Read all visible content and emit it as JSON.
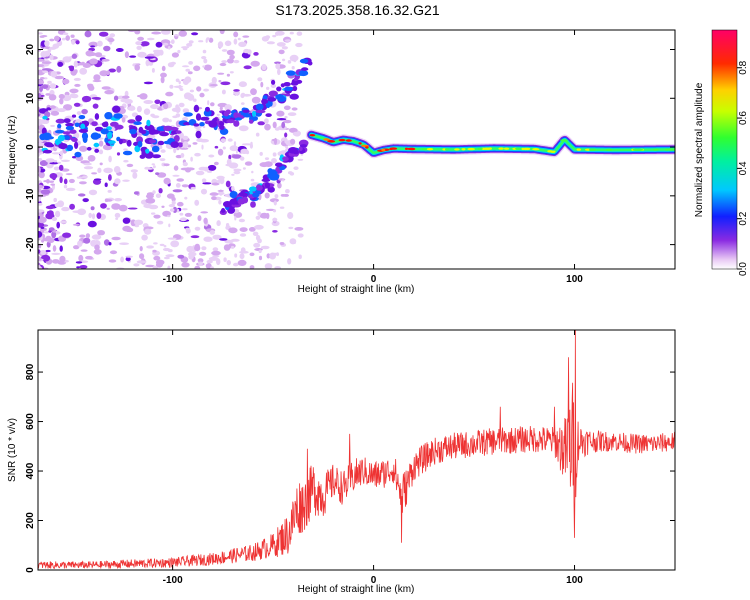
{
  "title": "S173.2025.358.16.32.G21",
  "chart_data": [
    {
      "type": "heatmap",
      "title": "",
      "xlabel": "Height of straight line (km)",
      "ylabel": "Frequency (Hz)",
      "xlim": [
        -167,
        150
      ],
      "ylim": [
        -25,
        24
      ],
      "xticks": [
        -100,
        0,
        100
      ],
      "yticks": [
        -20,
        -10,
        0,
        10,
        20
      ],
      "colorbar": {
        "label": "Normalized spectral amplitude",
        "range": [
          0,
          0.95
        ],
        "ticks": [
          0.0,
          0.2,
          0.4,
          0.6,
          0.8
        ],
        "tick_labels": [
          "0.0",
          "0.2",
          "0.4",
          "0.6",
          "0.8"
        ],
        "colormap": "rainbow"
      },
      "traces": [
        {
          "name": "upper-branch",
          "x": [
            -165,
            -140,
            -120,
            -100,
            -85,
            -70,
            -60,
            -50,
            -42,
            -38,
            -34,
            -31
          ],
          "freq": [
            3,
            2.5,
            2.5,
            3.2,
            4.8,
            5.8,
            7.2,
            9.5,
            12,
            14,
            16.5,
            17.5
          ]
        },
        {
          "name": "lower-branch",
          "x": [
            -75,
            -70,
            -65,
            -60,
            -55,
            -50,
            -46,
            -42,
            -38,
            -34
          ],
          "freq": [
            -13,
            -11.5,
            -10.5,
            -9.5,
            -8,
            -5.5,
            -3.5,
            -1.8,
            -0.5,
            0
          ]
        },
        {
          "name": "main-trace",
          "x": [
            -31,
            -25,
            -20,
            -15,
            -10,
            -5,
            0,
            5,
            10,
            20,
            40,
            60,
            80,
            90,
            95,
            100,
            120,
            150
          ],
          "freq": [
            2.5,
            1.8,
            1,
            1.5,
            1.2,
            0.5,
            -1.2,
            -0.6,
            -0.3,
            -0.4,
            -0.5,
            -0.3,
            -0.4,
            -1,
            1.5,
            -0.5,
            -0.6,
            -0.5
          ]
        }
      ]
    },
    {
      "type": "line",
      "title": "",
      "xlabel": "Height of straight line (km)",
      "ylabel": "SNR (10 * v/v)",
      "xlim": [
        -167,
        150
      ],
      "ylim": [
        0,
        970
      ],
      "xticks": [
        -100,
        0,
        100
      ],
      "yticks": [
        0,
        200,
        400,
        600,
        800
      ],
      "color": "#ee3333",
      "series": [
        {
          "name": "SNR",
          "x": [
            -167,
            -140,
            -120,
            -100,
            -80,
            -60,
            -50,
            -42,
            -38,
            -34,
            -30,
            -25,
            -20,
            -15,
            -10,
            -5,
            0,
            5,
            10,
            14,
            16,
            20,
            25,
            30,
            40,
            50,
            60,
            70,
            80,
            90,
            96,
            100,
            102,
            105,
            110,
            120,
            130,
            140,
            150
          ],
          "mean": [
            20,
            20,
            25,
            30,
            45,
            70,
            100,
            150,
            250,
            270,
            330,
            300,
            360,
            330,
            380,
            400,
            380,
            390,
            410,
            300,
            330,
            420,
            450,
            480,
            500,
            510,
            520,
            525,
            530,
            520,
            480,
            520,
            520,
            520,
            520,
            520,
            510,
            510,
            520
          ],
          "spread": [
            15,
            15,
            18,
            20,
            25,
            35,
            50,
            90,
            120,
            110,
            110,
            90,
            70,
            70,
            70,
            60,
            60,
            60,
            60,
            100,
            80,
            60,
            60,
            55,
            55,
            55,
            55,
            55,
            55,
            60,
            150,
            300,
            80,
            60,
            45,
            40,
            40,
            40,
            40
          ],
          "peaks": [
            {
              "x": 100.5,
              "y": 975
            },
            {
              "x": 97,
              "y": 860
            },
            {
              "x": 100,
              "y": 130
            },
            {
              "x": 14,
              "y": 110
            },
            {
              "x": 63,
              "y": 660
            },
            {
              "x": 90,
              "y": 660
            },
            {
              "x": -33,
              "y": 490
            },
            {
              "x": -12,
              "y": 550
            }
          ]
        }
      ]
    }
  ]
}
